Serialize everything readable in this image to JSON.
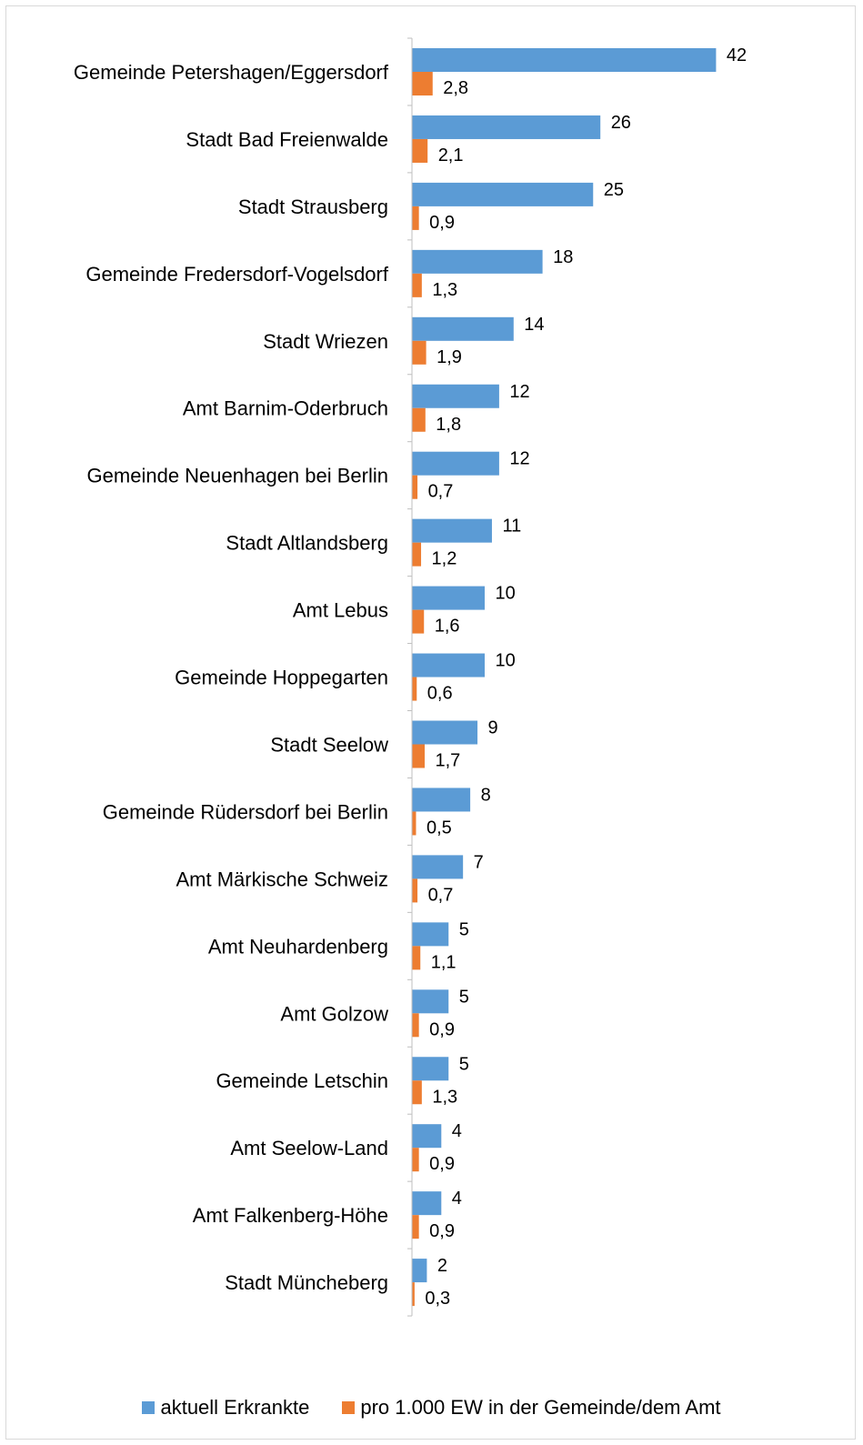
{
  "chart_data": {
    "type": "bar",
    "orientation": "horizontal",
    "categories": [
      "Gemeinde Petershagen/Eggersdorf",
      "Stadt Bad Freienwalde",
      "Stadt Strausberg",
      "Gemeinde Fredersdorf-Vogelsdorf",
      "Stadt Wriezen",
      "Amt Barnim-Oderbruch",
      "Gemeinde Neuenhagen bei Berlin",
      "Stadt Altlandsberg",
      "Amt Lebus",
      "Gemeinde Hoppegarten",
      "Stadt Seelow",
      "Gemeinde Rüdersdorf bei Berlin",
      "Amt Märkische Schweiz",
      "Amt Neuhardenberg",
      "Amt Golzow",
      "Gemeinde Letschin",
      "Amt Seelow-Land",
      "Amt Falkenberg-Höhe",
      "Stadt Müncheberg"
    ],
    "series": [
      {
        "name": "aktuell Erkrankte",
        "color": "#5b9bd5",
        "values": [
          42,
          26,
          25,
          18,
          14,
          12,
          12,
          11,
          10,
          10,
          9,
          8,
          7,
          5,
          5,
          5,
          4,
          4,
          2
        ],
        "labels": [
          "42",
          "26",
          "25",
          "18",
          "14",
          "12",
          "12",
          "11",
          "10",
          "10",
          "9",
          "8",
          "7",
          "5",
          "5",
          "5",
          "4",
          "4",
          "2"
        ]
      },
      {
        "name": "pro 1.000 EW in der Gemeinde/dem Amt",
        "color": "#ed7d31",
        "values": [
          2.8,
          2.1,
          0.9,
          1.3,
          1.9,
          1.8,
          0.7,
          1.2,
          1.6,
          0.6,
          1.7,
          0.5,
          0.7,
          1.1,
          0.9,
          1.3,
          0.9,
          0.9,
          0.3
        ],
        "labels": [
          "2,8",
          "2,1",
          "0,9",
          "1,3",
          "1,9",
          "1,8",
          "0,7",
          "1,2",
          "1,6",
          "0,6",
          "1,7",
          "0,5",
          "0,7",
          "1,1",
          "0,9",
          "1,3",
          "0,9",
          "0,9",
          "0,3"
        ]
      }
    ],
    "xlim": [
      0,
      48
    ],
    "grid": false,
    "legend_position": "bottom"
  }
}
